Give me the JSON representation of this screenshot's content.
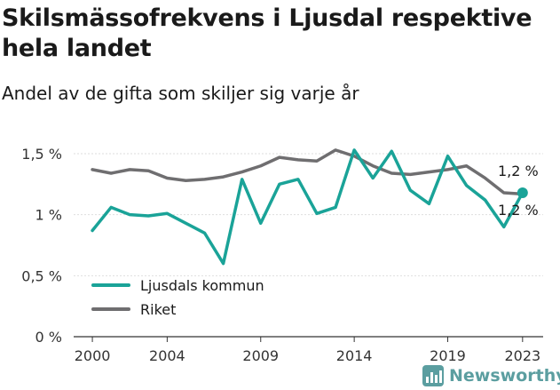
{
  "title": "Skilsmässofrekvens i Ljusdal respektive hela landet",
  "subtitle": "Andel av de gifta som skiljer sig varje år",
  "brand": {
    "name": "Newsworthy",
    "icon": "newsworthy-logo-icon",
    "color": "#5b9ea0"
  },
  "chart_data": {
    "type": "line",
    "x": [
      2000,
      2001,
      2002,
      2003,
      2004,
      2005,
      2006,
      2007,
      2008,
      2009,
      2010,
      2011,
      2012,
      2013,
      2014,
      2015,
      2016,
      2017,
      2018,
      2019,
      2020,
      2021,
      2022,
      2023
    ],
    "xticks": [
      2000,
      2004,
      2009,
      2014,
      2019,
      2023
    ],
    "yticks": [
      {
        "value": 0,
        "label": "0 %"
      },
      {
        "value": 0.5,
        "label": "0,5 %"
      },
      {
        "value": 1,
        "label": "1 %"
      },
      {
        "value": 1.5,
        "label": "1,5 %"
      }
    ],
    "ylim": [
      0,
      1.55
    ],
    "xlim": [
      2000,
      2023
    ],
    "grid": "horizontal",
    "legend_position": "bottom-left",
    "series": [
      {
        "name": "Ljusdals kommun",
        "color": "#1aa398",
        "values": [
          0.87,
          1.06,
          1.0,
          0.99,
          1.01,
          0.93,
          0.85,
          0.6,
          1.29,
          0.93,
          1.25,
          1.29,
          1.01,
          1.06,
          1.53,
          1.3,
          1.52,
          1.2,
          1.09,
          1.48,
          1.24,
          1.12,
          0.9,
          1.18
        ],
        "end_label": "1,2 %"
      },
      {
        "name": "Riket",
        "color": "#6f6e70",
        "values": [
          1.37,
          1.34,
          1.37,
          1.36,
          1.3,
          1.28,
          1.29,
          1.31,
          1.35,
          1.4,
          1.47,
          1.45,
          1.44,
          1.53,
          1.48,
          1.4,
          1.34,
          1.33,
          1.35,
          1.37,
          1.4,
          1.3,
          1.18,
          1.17
        ],
        "end_label": "1,2 %"
      }
    ]
  }
}
